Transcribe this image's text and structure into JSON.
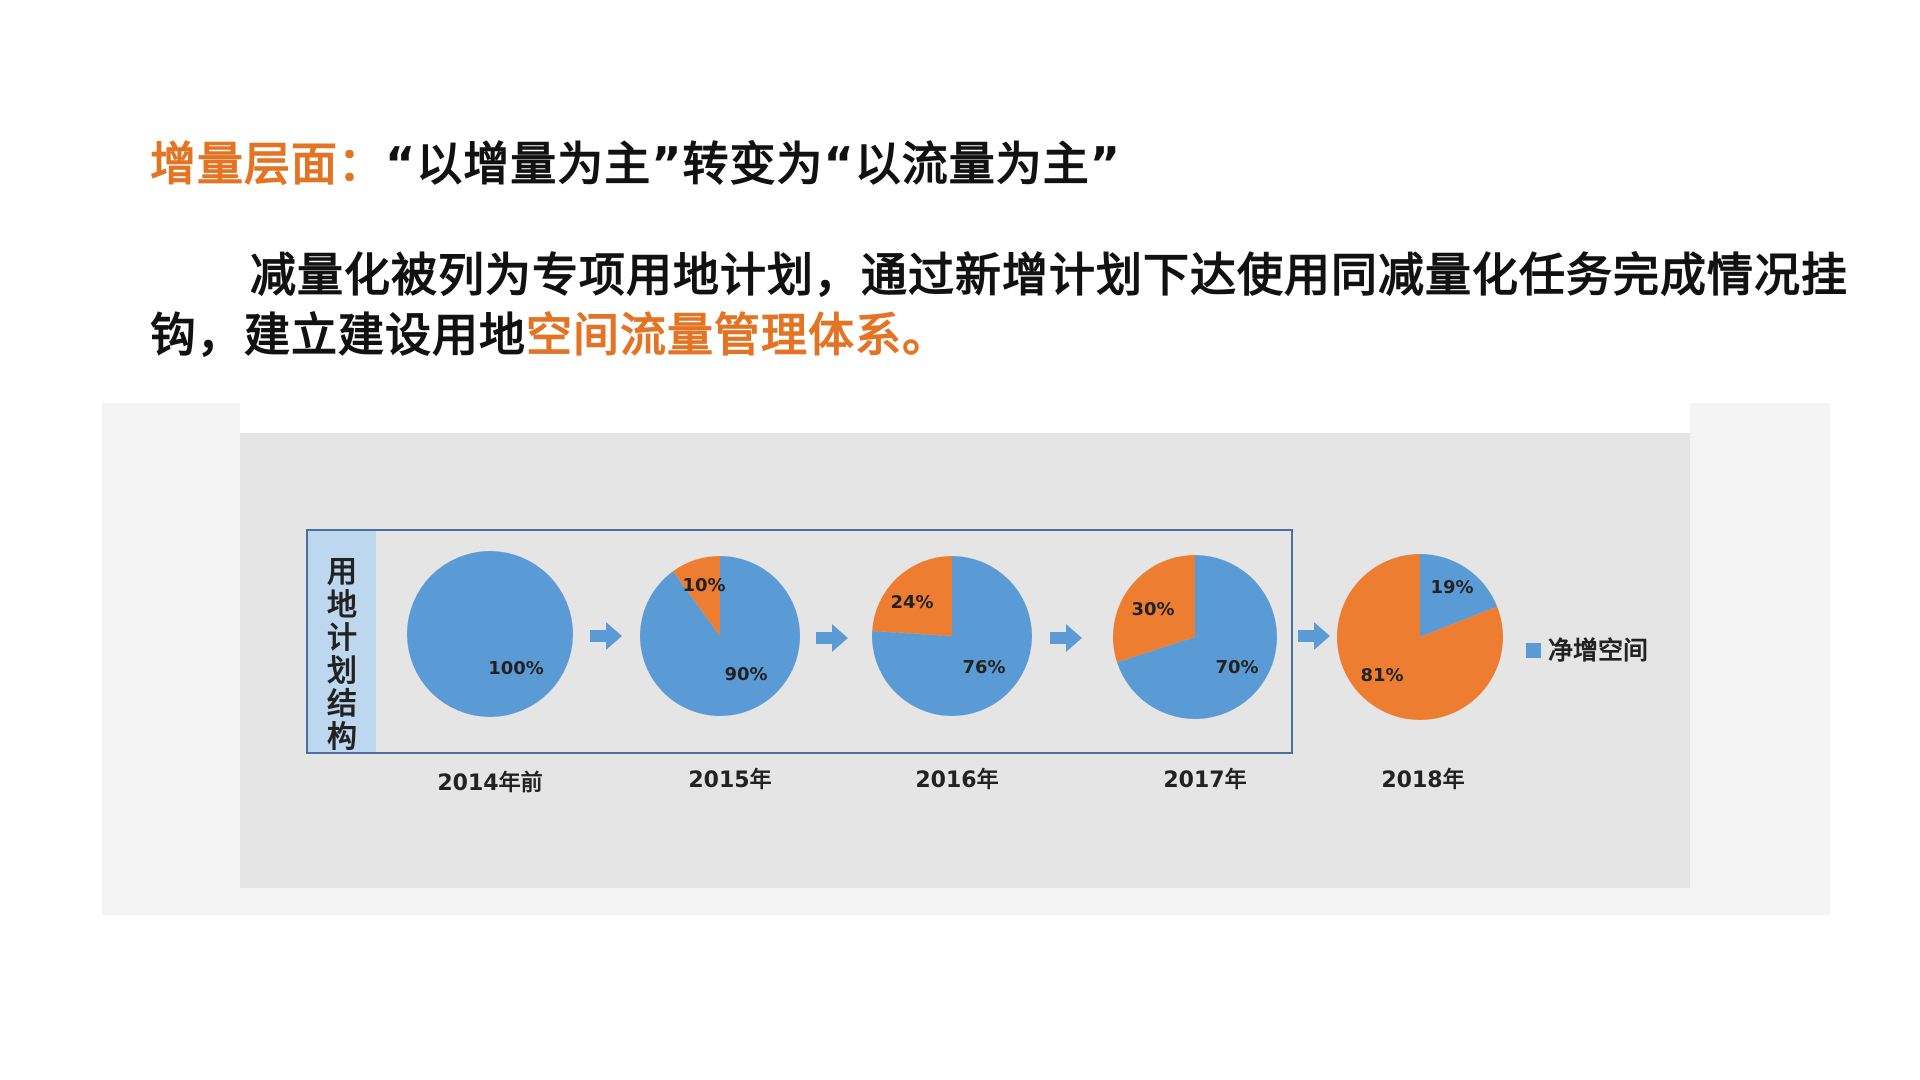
{
  "headline": {
    "label": "增量层面：",
    "text": "“以增量为主”转变为“以流量为主”"
  },
  "paragraph": {
    "text": "减量化被列为专项用地计划，通过新增计划下达使用同减量化任务完成情况挂钩，建立建设用地",
    "highlight": "空间流量管理体系。"
  },
  "colors": {
    "accent": "#e27424",
    "blue": "#5b9bd5",
    "orange": "#ed7d31",
    "sidebar": "#bdd7ee"
  },
  "chart_data": {
    "type": "pie",
    "side_label": "用地计划结构",
    "legend": "净增空间",
    "pies": [
      {
        "year": "2014年前",
        "blue": 100,
        "orange": 0,
        "blue_label": "100%",
        "orange_label": ""
      },
      {
        "year": "2015年",
        "blue": 90,
        "orange": 10,
        "blue_label": "90%",
        "orange_label": "10%"
      },
      {
        "year": "2016年",
        "blue": 76,
        "orange": 24,
        "blue_label": "76%",
        "orange_label": "24%"
      },
      {
        "year": "2017年",
        "blue": 70,
        "orange": 30,
        "blue_label": "70%",
        "orange_label": "30%"
      },
      {
        "year": "2018年",
        "blue": 19,
        "orange": 81,
        "blue_label": "19%",
        "orange_label": "81%"
      }
    ]
  }
}
